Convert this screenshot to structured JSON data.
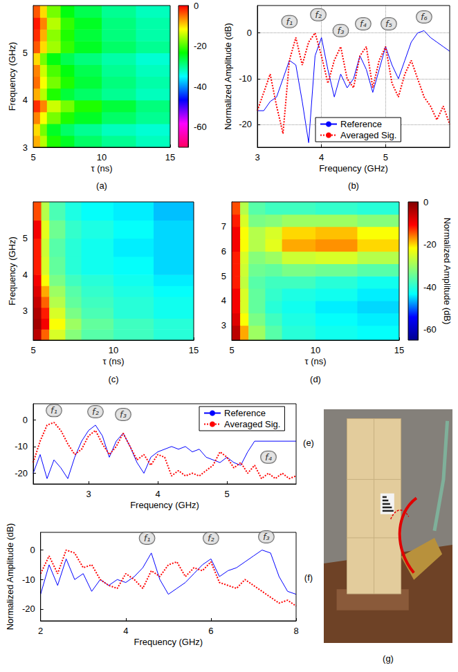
{
  "chart_data": [
    {
      "panel": "(a)",
      "type": "heatmap",
      "color": "hsv",
      "x_label": "τ (ns)",
      "y_label": "Frequency (GHz)",
      "xlim": [
        5,
        15
      ],
      "xticks": [
        5,
        10,
        15
      ],
      "ylim": [
        3,
        6
      ],
      "yticks": [
        3,
        4,
        5
      ],
      "tau_edges": [
        5,
        5.5,
        6,
        7,
        8,
        10,
        12.5,
        15
      ],
      "freq_edges": [
        3,
        3.25,
        3.5,
        3.75,
        4,
        4.25,
        4.5,
        4.75,
        5,
        5.25,
        5.5,
        5.75,
        6
      ],
      "cells": [
        [
          -8,
          -15,
          -22,
          -25,
          -28,
          -30,
          -32
        ],
        [
          -10,
          -18,
          -25,
          -28,
          -30,
          -32,
          -33
        ],
        [
          -6,
          -12,
          -18,
          -22,
          -25,
          -28,
          -30
        ],
        [
          -2,
          -6,
          -14,
          -18,
          -22,
          -26,
          -29
        ],
        [
          -8,
          -15,
          -22,
          -26,
          -28,
          -30,
          -32
        ],
        [
          -5,
          -12,
          -18,
          -22,
          -26,
          -29,
          -31
        ],
        [
          -6,
          -14,
          -20,
          -24,
          -27,
          -30,
          -32
        ],
        [
          -10,
          -18,
          -24,
          -27,
          -29,
          -31,
          -33
        ],
        [
          -4,
          -10,
          -16,
          -21,
          -25,
          -28,
          -30
        ],
        [
          -2,
          -8,
          -17,
          -22,
          -26,
          -29,
          -31
        ],
        [
          -1,
          -6,
          -15,
          -21,
          -25,
          -29,
          -31
        ],
        [
          -4,
          -10,
          -18,
          -24,
          -27,
          -30,
          -32
        ]
      ],
      "colorbar": {
        "range": [
          -70,
          0
        ],
        "ticks": [
          0,
          -20,
          -40,
          -60
        ]
      }
    },
    {
      "panel": "(b)",
      "type": "line",
      "x_label": "Frequency (GHz)",
      "y_label": "Normalized Amplitude (dB)",
      "xlim": [
        3,
        6
      ],
      "xticks": [
        3,
        4,
        5
      ],
      "ylim": [
        -25,
        6
      ],
      "yticks": [
        -20,
        -10,
        0
      ],
      "grid": true,
      "legend": "lower center",
      "x": [
        3.0,
        3.1,
        3.2,
        3.3,
        3.4,
        3.5,
        3.6,
        3.7,
        3.8,
        3.9,
        4.0,
        4.1,
        4.2,
        4.3,
        4.4,
        4.5,
        4.6,
        4.7,
        4.8,
        4.9,
        5.0,
        5.1,
        5.2,
        5.3,
        5.4,
        5.5,
        5.6,
        5.7,
        5.8,
        5.9,
        6.0
      ],
      "series": [
        {
          "name": "Reference",
          "color": "#0000ff",
          "line_style": "solid",
          "values": [
            -17,
            -17,
            -15,
            -14,
            -10,
            -6,
            -7,
            -15,
            -24,
            -5,
            -1,
            -8,
            -14,
            -9,
            -12,
            -10,
            -5,
            -8,
            -13,
            -8,
            -3,
            -7,
            -10,
            -6,
            -2,
            0,
            0.5,
            -1,
            -2,
            -3,
            -4
          ]
        },
        {
          "name": "Averaged Sig.",
          "color": "#ff0000",
          "line_style": "dotted",
          "values": [
            -17,
            -13,
            -9,
            -16,
            -22,
            -6,
            -1,
            -7,
            -2,
            0,
            -5,
            -11,
            -6,
            -3,
            -10,
            -12,
            -5,
            -3,
            -12,
            -6,
            -3,
            -11,
            -14,
            -9,
            -6,
            -10,
            -14,
            -16,
            -19,
            -16,
            -20
          ]
        }
      ],
      "annotations": [
        {
          "text": "f₁",
          "x": 3.5,
          "y": 2.5
        },
        {
          "text": "f₂",
          "x": 3.95,
          "y": 4
        },
        {
          "text": "f₃",
          "x": 4.3,
          "y": 0.5
        },
        {
          "text": "f₄",
          "x": 4.65,
          "y": 2
        },
        {
          "text": "f₅",
          "x": 5.05,
          "y": 2
        },
        {
          "text": "f₆",
          "x": 5.6,
          "y": 3.5
        }
      ]
    },
    {
      "panel": "(c)",
      "type": "heatmap",
      "color": "jet",
      "x_label": "τ (ns)",
      "y_label": "Frequency (GHz)",
      "xlim": [
        5,
        15
      ],
      "xticks": [
        5,
        10,
        15
      ],
      "ylim": [
        2.2,
        6
      ],
      "yticks": [
        3,
        4,
        5
      ],
      "tau_edges": [
        5,
        5.5,
        6,
        7,
        8,
        10,
        12.5,
        15
      ],
      "freq_edges": [
        2.2,
        2.5,
        2.8,
        3.1,
        3.4,
        3.7,
        4,
        4.5,
        5,
        5.5,
        6
      ],
      "cells": [
        [
          -5,
          -15,
          -25,
          -32,
          -36,
          -38,
          -40
        ],
        [
          -3,
          -10,
          -22,
          -30,
          -35,
          -38,
          -40
        ],
        [
          -4,
          -12,
          -25,
          -33,
          -37,
          -40,
          -42
        ],
        [
          -6,
          -15,
          -28,
          -35,
          -38,
          -40,
          -42
        ],
        [
          -8,
          -18,
          -30,
          -36,
          -39,
          -41,
          -43
        ],
        [
          -10,
          -22,
          -33,
          -38,
          -40,
          -42,
          -44
        ],
        [
          -12,
          -25,
          -35,
          -40,
          -42,
          -43,
          -45
        ],
        [
          -12,
          -26,
          -36,
          -40,
          -42,
          -44,
          -45
        ],
        [
          -10,
          -24,
          -34,
          -39,
          -41,
          -43,
          -45
        ],
        [
          -14,
          -28,
          -37,
          -41,
          -43,
          -44,
          -46
        ]
      ],
      "colorbar": {
        "range": [
          -65,
          0
        ]
      }
    },
    {
      "panel": "(d)",
      "type": "heatmap",
      "color": "jet",
      "x_label": "τ (ns)",
      "xlim": [
        5,
        15
      ],
      "xticks": [
        5,
        10,
        15
      ],
      "ylim": [
        2.4,
        8
      ],
      "yticks": [
        3,
        4,
        5,
        6,
        7
      ],
      "tau_edges": [
        5,
        5.5,
        6,
        7,
        8,
        10,
        12.5,
        15
      ],
      "freq_edges": [
        2.4,
        3,
        3.5,
        4,
        4.5,
        5,
        5.5,
        6,
        6.5,
        7,
        7.5,
        8
      ],
      "cells": [
        [
          -5,
          -18,
          -30,
          -36,
          -40,
          -42,
          -43
        ],
        [
          -8,
          -22,
          -33,
          -38,
          -41,
          -43,
          -44
        ],
        [
          -10,
          -25,
          -35,
          -40,
          -42,
          -44,
          -45
        ],
        [
          -10,
          -25,
          -35,
          -39,
          -41,
          -42,
          -44
        ],
        [
          -12,
          -27,
          -36,
          -38,
          -38,
          -40,
          -42
        ],
        [
          -12,
          -26,
          -34,
          -35,
          -33,
          -34,
          -36
        ],
        [
          -12,
          -25,
          -32,
          -30,
          -26,
          -25,
          -28
        ],
        [
          -10,
          -22,
          -28,
          -24,
          -18,
          -17,
          -20
        ],
        [
          -10,
          -22,
          -28,
          -25,
          -20,
          -19,
          -22
        ],
        [
          -12,
          -25,
          -33,
          -32,
          -30,
          -30,
          -32
        ],
        [
          -14,
          -28,
          -36,
          -38,
          -38,
          -39,
          -40
        ]
      ],
      "colorbar": {
        "range": [
          -65,
          0
        ],
        "ticks": [
          0,
          -20,
          -40,
          -60
        ],
        "title": "Normalized Amplitude (dB)"
      }
    },
    {
      "panel": "(e)",
      "type": "line",
      "x_label": "Frequency (GHz)",
      "xlim": [
        2.2,
        6
      ],
      "xticks": [
        3,
        4,
        5
      ],
      "ylim": [
        -24,
        6
      ],
      "yticks": [
        -20,
        -10,
        0
      ],
      "grid": false,
      "legend": "upper right",
      "x": [
        2.2,
        2.3,
        2.4,
        2.5,
        2.6,
        2.7,
        2.8,
        2.9,
        3.0,
        3.1,
        3.2,
        3.3,
        3.4,
        3.5,
        3.6,
        3.7,
        3.8,
        3.9,
        4.0,
        4.1,
        4.2,
        4.3,
        4.4,
        4.5,
        4.6,
        4.7,
        4.8,
        4.9,
        5.0,
        5.1,
        5.2,
        5.3,
        5.4,
        5.5,
        5.6,
        5.7,
        5.8,
        5.9,
        6.0
      ],
      "series": [
        {
          "name": "Reference",
          "color": "#0000ff",
          "line_style": "solid",
          "values": [
            -20,
            -13,
            -22,
            -15,
            -18,
            -22,
            -14,
            -8,
            -4,
            -2,
            -6,
            -14,
            -8,
            -5,
            -10,
            -16,
            -20,
            -14,
            -12,
            -11,
            -10,
            -11,
            -10,
            -12,
            -11,
            -14,
            -15,
            -16,
            -14,
            -16,
            -17,
            -12,
            -8,
            -8,
            -8,
            -8,
            -8,
            -8,
            -8
          ]
        },
        {
          "name": "Averaged Sig.",
          "color": "#ff0000",
          "line_style": "dotted",
          "values": [
            -16,
            -8,
            -2,
            -1,
            -4,
            -9,
            -13,
            -11,
            -6,
            -4,
            -9,
            -13,
            -10,
            -5,
            -10,
            -15,
            -13,
            -17,
            -13,
            -14,
            -21,
            -19,
            -21,
            -20,
            -21,
            -19,
            -17,
            -12,
            -14,
            -18,
            -16,
            -20,
            -17,
            -22,
            -20,
            -22,
            -20,
            -22,
            -21
          ]
        }
      ],
      "annotations": [
        {
          "text": "f₁",
          "x": 2.5,
          "y": 3.5
        },
        {
          "text": "f₂",
          "x": 3.1,
          "y": 3
        },
        {
          "text": "f₃",
          "x": 3.5,
          "y": 2
        },
        {
          "text": "f₄",
          "x": 5.6,
          "y": -14
        }
      ]
    },
    {
      "panel": "(f)",
      "type": "line",
      "x_label": "Frequency (GHz)",
      "y_label": "Normalized Amplitude (dB)",
      "xlim": [
        2,
        8
      ],
      "xticks": [
        2,
        4,
        6,
        8
      ],
      "ylim": [
        -24,
        6
      ],
      "yticks": [
        -20,
        -10,
        0
      ],
      "grid": false,
      "x": [
        2.0,
        2.2,
        2.4,
        2.6,
        2.8,
        3.0,
        3.2,
        3.4,
        3.6,
        3.8,
        4.0,
        4.2,
        4.4,
        4.6,
        4.8,
        5.0,
        5.2,
        5.4,
        5.6,
        5.8,
        6.0,
        6.2,
        6.4,
        6.6,
        6.8,
        7.0,
        7.2,
        7.4,
        7.6,
        7.8,
        8.0
      ],
      "series": [
        {
          "name": "Reference",
          "color": "#0000ff",
          "line_style": "solid",
          "values": [
            -15,
            -5,
            -12,
            -3,
            -10,
            -8,
            -14,
            -10,
            -12,
            -10,
            -11,
            -9,
            -6,
            -1,
            -10,
            -15,
            -13,
            -11,
            -8,
            -5,
            -3,
            -9,
            -7,
            -6,
            -4,
            -2,
            0,
            -1,
            -9,
            -14,
            -15
          ]
        },
        {
          "name": "Averaged Sig.",
          "color": "#ff0000",
          "line_style": "dotted",
          "values": [
            -8,
            -2,
            -8,
            0,
            -1,
            -6,
            -5,
            -10,
            -12,
            -13,
            -8,
            -10,
            -13,
            -7,
            -9,
            -5,
            -4,
            -9,
            -6,
            -7,
            -4,
            -11,
            -12,
            -13,
            -10,
            -12,
            -14,
            -16,
            -18,
            -17,
            -19
          ]
        }
      ],
      "annotations": [
        {
          "text": "f₁",
          "x": 4.5,
          "y": 4
        },
        {
          "text": "f₂",
          "x": 6.0,
          "y": 4
        },
        {
          "text": "f₃",
          "x": 7.3,
          "y": 4.5
        }
      ]
    },
    {
      "panel": "(g)",
      "type": "photo"
    }
  ]
}
